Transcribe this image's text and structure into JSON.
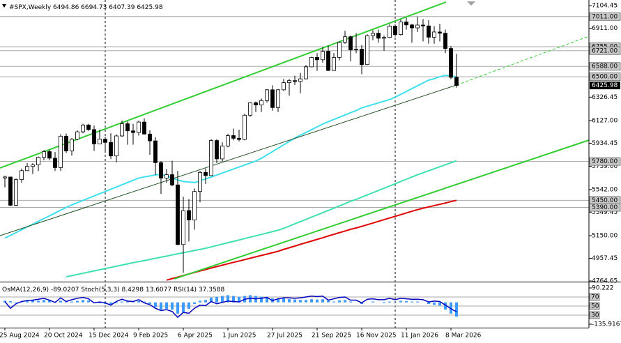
{
  "chart_data": {
    "type": "candlestick",
    "title": "#SPX,Weekly",
    "categories": [
      "25 Aug 2024",
      null,
      null,
      null,
      null,
      null,
      null,
      null,
      "20 Oct 2024",
      null,
      null,
      null,
      null,
      null,
      null,
      null,
      "15 Dec 2024",
      null,
      null,
      null,
      null,
      null,
      null,
      null,
      "9 Feb 2025",
      null,
      null,
      null,
      null,
      null,
      null,
      null,
      "6 Apr 2025",
      null,
      null,
      null,
      null,
      null,
      null,
      null,
      "1 Jun 2025",
      null,
      null,
      null,
      null,
      null,
      null,
      null,
      "27 Jul 2025",
      null,
      null,
      null,
      null,
      null,
      null,
      null,
      "21 Sep 2025",
      null,
      null,
      null,
      null,
      null,
      null,
      null,
      "16 Nov 2025",
      null,
      null,
      null,
      null,
      null,
      null,
      null,
      "11 Jan 2026",
      null,
      null,
      null,
      null,
      null,
      null,
      null,
      "8 Mar 2026",
      null
    ],
    "open": [
      5640,
      5648,
      5408,
      5626,
      5702,
      5738,
      5751,
      5815,
      5864,
      5808,
      5728,
      5995,
      5870,
      5969,
      6032,
      6090,
      6051,
      5930,
      5970,
      5942,
      5827,
      5997,
      6101,
      6040,
      6026,
      6115,
      6013,
      5955,
      5770,
      5639,
      5668,
      5581,
      5074,
      5363,
      5283,
      5525,
      5687,
      5660,
      5958,
      5802,
      5912,
      6000,
      5977,
      5967,
      6173,
      6279,
      6260,
      6297,
      6389,
      6238,
      6389,
      6450,
      6467,
      6460,
      6482,
      6584,
      6664,
      6644,
      6716,
      6553,
      6664,
      6792,
      6840,
      6728,
      6734,
      6603,
      6849,
      6870,
      6827,
      6834,
      6930,
      6858,
      6966,
      6940,
      6915,
      6939,
      6932,
      6836,
      6880,
      6870,
      6740,
      6494.86
    ],
    "high": [
      5660,
      5650,
      5636,
      5720,
      5767,
      5765,
      5822,
      5878,
      5878,
      5860,
      6012,
      6017,
      5980,
      6044,
      6100,
      6100,
      6085,
      6050,
      5990,
      6020,
      6010,
      6128,
      6120,
      6100,
      6127,
      6147,
      6044,
      5986,
      5783,
      5715,
      5786,
      5700,
      5481,
      5460,
      5551,
      5700,
      5720,
      5970,
      5970,
      5943,
      6016,
      6059,
      6050,
      6187,
      6284,
      6290,
      6315,
      6395,
      6427,
      6395,
      6481,
      6481,
      6508,
      6533,
      6600,
      6670,
      6700,
      6750,
      6764,
      6700,
      6800,
      6890,
      6850,
      6870,
      6770,
      6860,
      6895,
      6900,
      6850,
      6945,
      6945,
      6986,
      7002,
      6950,
      7011,
      6990,
      6980,
      6930,
      6950,
      6900,
      6760,
      6694.73
    ],
    "low": [
      5560,
      5400,
      5402,
      5600,
      5700,
      5674,
      5700,
      5790,
      5790,
      5700,
      5700,
      5853,
      5830,
      5960,
      6020,
      6040,
      5870,
      5930,
      5870,
      5800,
      5773,
      5990,
      5923,
      5923,
      6000,
      6010,
      5837,
      5666,
      5505,
      5600,
      5570,
      5069,
      4835,
      5100,
      5200,
      5433,
      5590,
      5660,
      5767,
      5780,
      5900,
      5960,
      5950,
      5960,
      6160,
      6200,
      6200,
      6280,
      6212,
      6200,
      6380,
      6340,
      6430,
      6360,
      6480,
      6580,
      6550,
      6620,
      6550,
      6550,
      6640,
      6780,
      6630,
      6700,
      6521,
      6600,
      6810,
      6790,
      6720,
      6830,
      6840,
      6850,
      6900,
      6790,
      6880,
      6800,
      6780,
      6780,
      6800,
      6700,
      6480,
      6407.39
    ],
    "close": [
      5648,
      5408,
      5626,
      5702,
      5738,
      5751,
      5815,
      5864,
      5808,
      5728,
      5995,
      5870,
      5969,
      6032,
      6090,
      6051,
      5930,
      5970,
      5942,
      5827,
      5997,
      6101,
      6040,
      6026,
      6115,
      6013,
      5955,
      5770,
      5639,
      5668,
      5581,
      5074,
      5363,
      5283,
      5525,
      5687,
      5660,
      5958,
      5802,
      5912,
      6000,
      5977,
      5967,
      6173,
      6279,
      6260,
      6297,
      6389,
      6238,
      6389,
      6450,
      6467,
      6460,
      6482,
      6584,
      6664,
      6644,
      6716,
      6553,
      6664,
      6792,
      6840,
      6728,
      6734,
      6603,
      6849,
      6870,
      6827,
      6834,
      6930,
      6858,
      6966,
      6940,
      6915,
      6939,
      6932,
      6836,
      6880,
      6870,
      6740,
      6495,
      6425.98
    ],
    "up_color": "#ffffff",
    "down_color": "#000000",
    "wick_color": "#000000",
    "series": [
      {
        "color": "#3ee0ee",
        "values": [
          5129,
          5152,
          5176,
          5200,
          5224,
          5247,
          5271,
          5295,
          5318,
          5342,
          5366,
          5390,
          5411,
          5430,
          5449,
          5468,
          5487,
          5506,
          5525,
          5544,
          5563,
          5582,
          5601,
          5620,
          5639,
          5649,
          5657,
          5665,
          5671,
          5655,
          5639,
          5623,
          5610,
          5606,
          5601,
          5615,
          5632,
          5648,
          5665,
          5682,
          5699,
          5716,
          5733,
          5750,
          5767,
          5784,
          5807,
          5836,
          5864,
          5893,
          5921,
          5950,
          5979,
          6003,
          6027,
          6050,
          6074,
          6098,
          6118,
          6137,
          6156,
          6175,
          6194,
          6213,
          6236,
          6250,
          6264,
          6278,
          6292,
          6306,
          6327,
          6351,
          6375,
          6399,
          6423,
          6447,
          6471,
          6483,
          6500,
          6512,
          6506,
          6500
        ]
      },
      {
        "color": "#3ee0b0",
        "values": [
          null,
          null,
          null,
          null,
          null,
          null,
          null,
          null,
          null,
          null,
          null,
          4800,
          4810,
          4820,
          4830,
          4840,
          4850,
          4860,
          4870,
          4880,
          4890,
          4900,
          4910,
          4920,
          4929,
          4938,
          4948,
          4957,
          4967,
          4976,
          4986,
          4995,
          5005,
          5014,
          5024,
          5033,
          5043,
          5054,
          5066,
          5078,
          5090,
          5101,
          5113,
          5125,
          5137,
          5149,
          5160,
          5172,
          5184,
          5196,
          5212,
          5231,
          5250,
          5269,
          5288,
          5307,
          5326,
          5345,
          5364,
          5383,
          5402,
          5421,
          5441,
          5458,
          5477,
          5496,
          5515,
          5534,
          5553,
          5572,
          5591,
          5610,
          5629,
          5648,
          5667,
          5684,
          5701,
          5718,
          5735,
          5752,
          5769,
          5786
        ]
      },
      {
        "color": "#e00000",
        "values": [
          null,
          null,
          null,
          null,
          null,
          null,
          null,
          null,
          null,
          null,
          null,
          null,
          null,
          null,
          null,
          null,
          null,
          null,
          null,
          null,
          null,
          null,
          null,
          null,
          null,
          null,
          null,
          null,
          null,
          4772,
          4785,
          4798,
          4811,
          4824,
          4837,
          4850,
          4862,
          4875,
          4887,
          4899,
          4911,
          4923,
          4934,
          4946,
          4958,
          4970,
          4982,
          4993,
          5005,
          5017,
          5033,
          5047,
          5061,
          5076,
          5090,
          5104,
          5118,
          5132,
          5147,
          5161,
          5175,
          5189,
          5204,
          5215,
          5229,
          5243,
          5257,
          5272,
          5286,
          5300,
          5314,
          5328,
          5343,
          5357,
          5371,
          5383,
          5394,
          5405,
          5416,
          5427,
          5439,
          5450
        ]
      }
    ],
    "ylim": [
      4759,
      7152
    ],
    "yticks": [
      7104.45,
      {
        "value": 6911,
        "label": "6911.00"
      },
      6326.45,
      {
        "value": 6127,
        "label": "6127.00"
      },
      5934.45,
      {
        "value": 5739,
        "label": "5739.00"
      },
      {
        "value": 5542,
        "label": "5542.00"
      },
      5349.45,
      {
        "value": 5150,
        "label": "5150.00"
      },
      4957.45,
      4764.65
    ],
    "levels": [
      {
        "value": 7011,
        "label": "7011.00"
      },
      {
        "value": 6755,
        "label": "6755.00"
      },
      {
        "value": 6721,
        "label": "6721.00"
      },
      {
        "value": 6588,
        "label": "6588.00"
      },
      {
        "value": 6500,
        "label": "6500.00"
      },
      {
        "value": 5780,
        "label": "5780.00"
      },
      {
        "value": 5450,
        "label": "5450.00"
      },
      {
        "value": 5390,
        "label": "5390.00"
      }
    ],
    "osma": {
      "name": "OsMA(12,26,9)",
      "color": "#3d9bff",
      "lim": [
        -153.3,
        116.3
      ],
      "ticks": [
        90.222,
        -135.9167
      ],
      "values": [
        10,
        8,
        -5,
        5,
        10,
        12,
        10,
        15,
        12,
        5,
        10,
        8,
        5,
        10,
        15,
        12,
        0,
        -5,
        -10,
        -15,
        -5,
        5,
        10,
        5,
        8,
        5,
        -10,
        -30,
        -45,
        -40,
        -45,
        -70,
        -60,
        -40,
        -10,
        10,
        15,
        30,
        35,
        40,
        45,
        40,
        35,
        40,
        45,
        40,
        35,
        35,
        25,
        25,
        25,
        20,
        18,
        15,
        15,
        20,
        18,
        20,
        10,
        5,
        12,
        15,
        5,
        0,
        -10,
        0,
        5,
        0,
        -5,
        5,
        2,
        10,
        8,
        5,
        5,
        0,
        -10,
        -15,
        -20,
        -45,
        -70,
        -89.0207
      ]
    },
    "stoch": {
      "name": "Stoch(5,3,3)",
      "values": [
        8.4298,
        13.6077
      ]
    },
    "rsi": {
      "name": "RSI(14)",
      "color": "#0000c0",
      "lim": [
        3.8,
        99.2
      ],
      "levels": [
        70,
        50,
        30
      ],
      "values": [
        60,
        45,
        55,
        60,
        62,
        63,
        65,
        67,
        63,
        58,
        68,
        60,
        64,
        67,
        69,
        66,
        57,
        59,
        57,
        52,
        60,
        65,
        61,
        60,
        64,
        57,
        53,
        45,
        40,
        42,
        38,
        25,
        36,
        34,
        45,
        52,
        51,
        60,
        55,
        58,
        61,
        60,
        59,
        65,
        67,
        66,
        67,
        69,
        62,
        66,
        68,
        68,
        67,
        68,
        70,
        72,
        71,
        72,
        63,
        66,
        69,
        70,
        63,
        63,
        57,
        65,
        66,
        64,
        64,
        67,
        64,
        67,
        66,
        65,
        65,
        64,
        59,
        61,
        60,
        52,
        44,
        37.3588
      ]
    }
  }
}
